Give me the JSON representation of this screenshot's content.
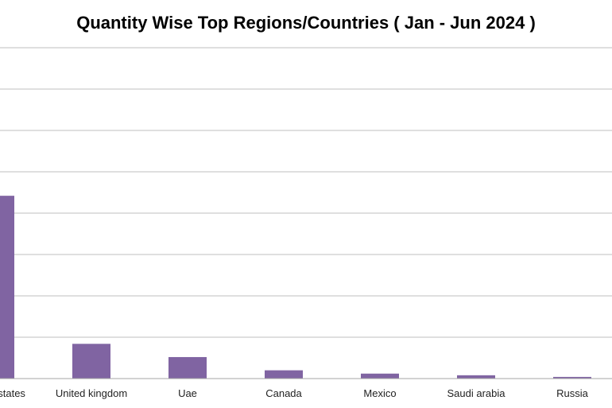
{
  "chart_data": {
    "type": "bar",
    "title": "Quantity Wise Top Regions/Countries ( Jan - Jun 2024 )",
    "categories": [
      "United states",
      "United kingdom",
      "Uae",
      "Canada",
      "Mexico",
      "Saudi arabia",
      "Russia"
    ],
    "values": [
      2.21,
      0.42,
      0.26,
      0.1,
      0.06,
      0.04,
      0.02
    ],
    "ylim": [
      0,
      4
    ],
    "ytick_step": 0.5,
    "grid": true,
    "legend": "none",
    "colors": {
      "bar": "#8064A2",
      "grid": "#BFBFBF",
      "axis": "#A6A6A6"
    }
  }
}
